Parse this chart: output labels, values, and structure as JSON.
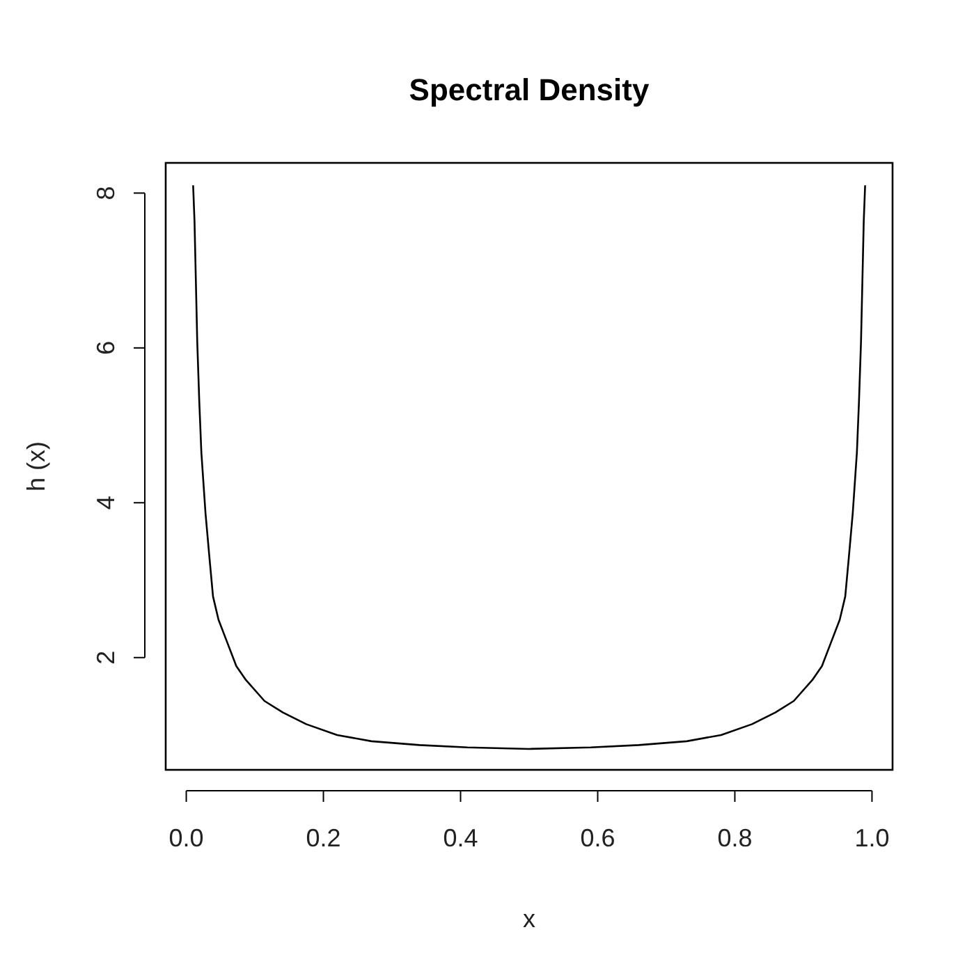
{
  "chart_data": {
    "type": "line",
    "title": "Spectral Density",
    "xlabel": "x",
    "ylabel": "h (x)",
    "x": [
      0.01,
      0.012,
      0.014,
      0.016,
      0.019,
      0.022,
      0.028,
      0.034,
      0.039,
      0.047,
      0.06,
      0.073,
      0.087,
      0.114,
      0.141,
      0.175,
      0.22,
      0.27,
      0.34,
      0.41,
      0.5,
      0.59,
      0.66,
      0.73,
      0.78,
      0.825,
      0.859,
      0.886,
      0.913,
      0.927,
      0.94,
      0.953,
      0.961,
      0.966,
      0.972,
      0.978,
      0.981,
      0.984,
      0.986,
      0.988,
      0.99
    ],
    "series": [
      {
        "color": "#000000",
        "values": [
          8.1,
          7.64,
          6.86,
          6.08,
          5.3,
          4.65,
          3.87,
          3.27,
          2.79,
          2.49,
          2.19,
          1.89,
          1.71,
          1.44,
          1.29,
          1.14,
          1.0,
          0.92,
          0.87,
          0.84,
          0.82,
          0.84,
          0.87,
          0.92,
          1.0,
          1.14,
          1.29,
          1.44,
          1.71,
          1.89,
          2.19,
          2.49,
          2.79,
          3.27,
          3.87,
          4.65,
          5.3,
          6.08,
          6.86,
          7.64,
          8.1
        ]
      }
    ],
    "xlim": [
      -0.03,
      1.03
    ],
    "ylim": [
      0.55,
      8.39
    ],
    "xticks": [
      {
        "value": 0,
        "label": "0.0"
      },
      0.2,
      0.4,
      0.6,
      0.8,
      {
        "value": 1,
        "label": "1.0"
      }
    ],
    "yticks": [
      2,
      4,
      6,
      8
    ],
    "grid": false,
    "marker": "none",
    "line_style": "solid"
  }
}
